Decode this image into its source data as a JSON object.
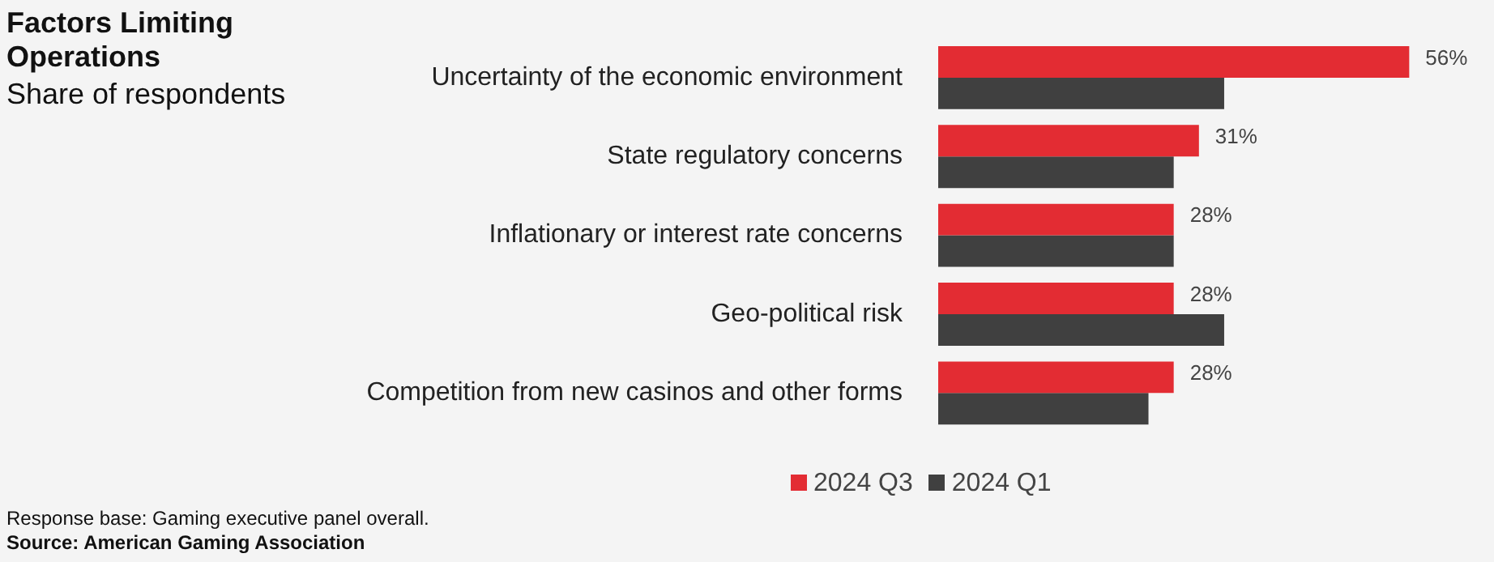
{
  "chart_data": {
    "type": "bar",
    "orientation": "horizontal",
    "title": "Factors Limiting Operations",
    "subtitle": "Share of respondents",
    "categories": [
      "Uncertainty of the economic environment",
      "State regulatory concerns",
      "Inflationary or interest rate concerns",
      "Geo-political risk",
      "Competition from new casinos and other forms"
    ],
    "series": [
      {
        "name": "2024 Q3",
        "color": "#e32c33",
        "values": [
          56,
          31,
          28,
          28,
          28
        ],
        "value_labels": [
          "56%",
          "31%",
          "28%",
          "28%",
          "28%"
        ]
      },
      {
        "name": "2024 Q1",
        "color": "#404040",
        "values": [
          34,
          28,
          28,
          34,
          25
        ]
      }
    ],
    "legend": "bottom",
    "annotations": [
      "Response base: Gaming executive panel overall.",
      "Source: American Gaming Association"
    ]
  }
}
